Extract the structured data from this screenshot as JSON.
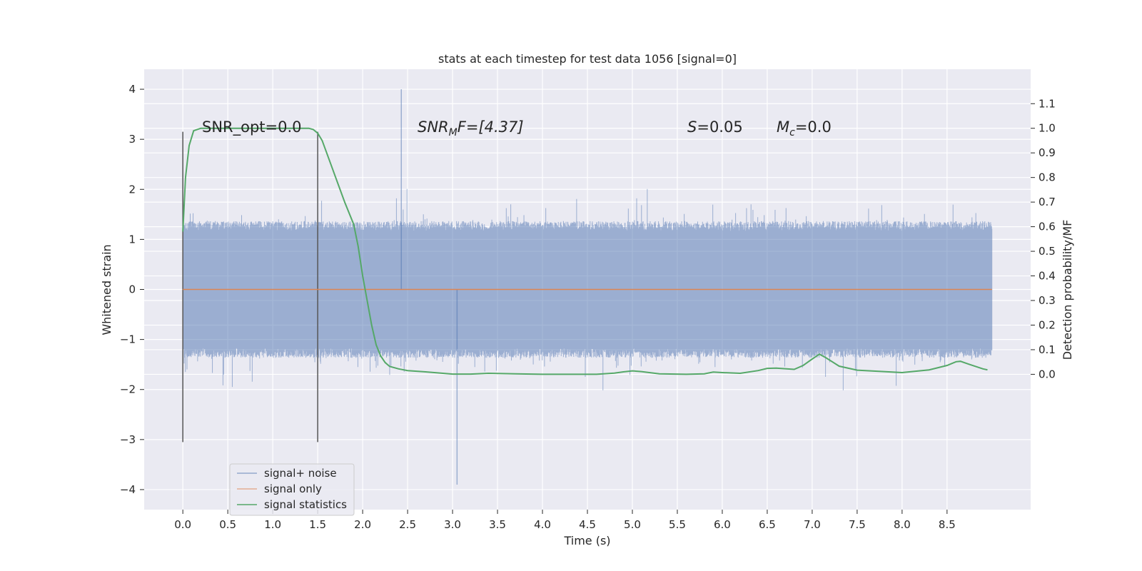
{
  "chart_data": {
    "type": "line",
    "title": "stats at each timestep for test data 1056 [signal=0]",
    "xlabel": "Time (s)",
    "ylabel": "Whitened strain",
    "ylabel_right": "Detection probability/MF",
    "xlim": [
      -0.43,
      9.43
    ],
    "ylim": [
      -4.4,
      4.4
    ],
    "ylim_right": [
      -0.55,
      1.24
    ],
    "x_ticks": [
      "0.0",
      "0.5",
      "1.0",
      "1.5",
      "2.0",
      "2.5",
      "3.0",
      "3.5",
      "4.0",
      "4.5",
      "5.0",
      "5.5",
      "6.0",
      "6.5",
      "7.0",
      "7.5",
      "8.0",
      "8.5"
    ],
    "y_ticks": [
      "−4",
      "−3",
      "−2",
      "−1",
      "0",
      "1",
      "2",
      "3",
      "4"
    ],
    "y_right_ticks": [
      "0.0",
      "0.1",
      "0.2",
      "0.3",
      "0.4",
      "0.5",
      "0.6",
      "0.7",
      "0.8",
      "0.9",
      "1.0",
      "1.1"
    ],
    "grid": true,
    "annotations": {
      "snr_opt": "SNR_opt=0.0",
      "snr_mf_base": "SNR",
      "snr_mf_sub": "M",
      "snr_mf_rest": "F=[4.37]",
      "s_label": "S",
      "s_value": "=0.05",
      "mc_label": "M",
      "mc_sub": "c",
      "mc_value": "=0.0"
    },
    "legend": {
      "placement": "lower-left",
      "entries": [
        "signal+ noise",
        "signal only",
        "signal statistics"
      ]
    },
    "vertical_markers_x": [
      0.0,
      1.5
    ],
    "noise": {
      "x_start": 0.0,
      "x_end": 9.0,
      "typical_amplitude": 1.3,
      "max_peak": 4.0,
      "min_peak": -3.9
    },
    "series": [
      {
        "name": "signal+ noise",
        "axis": "left",
        "color": "#4c72b0",
        "style": "dense noise band"
      },
      {
        "name": "signal only",
        "axis": "left",
        "color": "#dd8452",
        "x": [
          0.0,
          9.0
        ],
        "y": [
          0.0,
          0.0
        ]
      },
      {
        "name": "signal statistics",
        "axis": "right",
        "color": "#55a868",
        "x": [
          0.0,
          0.03,
          0.07,
          0.12,
          0.2,
          0.3,
          0.5,
          0.8,
          1.0,
          1.2,
          1.3,
          1.4,
          1.45,
          1.5,
          1.55,
          1.6,
          1.7,
          1.8,
          1.9,
          1.95,
          2.0,
          2.05,
          2.1,
          2.15,
          2.2,
          2.25,
          2.3,
          2.4,
          2.5,
          2.7,
          3.0,
          3.2,
          3.4,
          3.7,
          4.0,
          4.3,
          4.6,
          4.8,
          4.9,
          5.0,
          5.1,
          5.3,
          5.6,
          5.8,
          5.9,
          6.0,
          6.2,
          6.4,
          6.5,
          6.6,
          6.8,
          6.9,
          7.0,
          7.08,
          7.15,
          7.3,
          7.5,
          8.0,
          8.3,
          8.5,
          8.6,
          8.65,
          8.75,
          8.9,
          8.95
        ],
        "y": [
          0.58,
          0.8,
          0.93,
          0.99,
          1.0,
          1.0,
          1.0,
          1.0,
          1.0,
          1.0,
          1.0,
          1.0,
          0.995,
          0.98,
          0.95,
          0.9,
          0.8,
          0.7,
          0.61,
          0.52,
          0.4,
          0.3,
          0.2,
          0.12,
          0.075,
          0.048,
          0.032,
          0.022,
          0.015,
          0.01,
          0.001,
          0.001,
          0.004,
          0.002,
          0.0,
          0.0,
          0.0,
          0.005,
          0.01,
          0.014,
          0.011,
          0.002,
          0.0,
          0.002,
          0.009,
          0.007,
          0.004,
          0.015,
          0.024,
          0.025,
          0.02,
          0.036,
          0.062,
          0.082,
          0.068,
          0.033,
          0.017,
          0.007,
          0.018,
          0.036,
          0.051,
          0.053,
          0.04,
          0.022,
          0.018
        ]
      }
    ]
  }
}
